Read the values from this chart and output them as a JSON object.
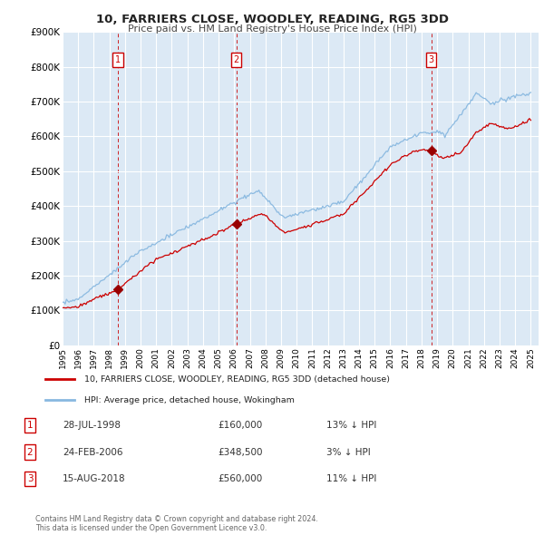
{
  "title": "10, FARRIERS CLOSE, WOODLEY, READING, RG5 3DD",
  "subtitle": "Price paid vs. HM Land Registry's House Price Index (HPI)",
  "background_color": "#ffffff",
  "plot_bg_color": "#dce9f5",
  "grid_color": "#ffffff",
  "ylim": [
    0,
    900000
  ],
  "yticks": [
    0,
    100000,
    200000,
    300000,
    400000,
    500000,
    600000,
    700000,
    800000,
    900000
  ],
  "ytick_labels": [
    "£0",
    "£100K",
    "£200K",
    "£300K",
    "£400K",
    "£500K",
    "£600K",
    "£700K",
    "£800K",
    "£900K"
  ],
  "xlim_start": 1995.0,
  "xlim_end": 2025.5,
  "xtick_years": [
    1995,
    1996,
    1997,
    1998,
    1999,
    2000,
    2001,
    2002,
    2003,
    2004,
    2005,
    2006,
    2007,
    2008,
    2009,
    2010,
    2011,
    2012,
    2013,
    2014,
    2015,
    2016,
    2017,
    2018,
    2019,
    2020,
    2021,
    2022,
    2023,
    2024,
    2025
  ],
  "sale_points": [
    {
      "year": 1998.55,
      "price": 160000,
      "label": "1"
    },
    {
      "year": 2006.13,
      "price": 348500,
      "label": "2"
    },
    {
      "year": 2018.62,
      "price": 560000,
      "label": "3"
    }
  ],
  "vline_color": "#cc0000",
  "sale_dot_color": "#990000",
  "price_line_color": "#cc0000",
  "hpi_line_color": "#88b8e0",
  "legend_price_label": "10, FARRIERS CLOSE, WOODLEY, READING, RG5 3DD (detached house)",
  "legend_hpi_label": "HPI: Average price, detached house, Wokingham",
  "footer_text": "Contains HM Land Registry data © Crown copyright and database right 2024.\nThis data is licensed under the Open Government Licence v3.0.",
  "label_box_color": "#cc0000",
  "table_rows": [
    [
      "1",
      "28-JUL-1998",
      "£160,000",
      "13% ↓ HPI"
    ],
    [
      "2",
      "24-FEB-2006",
      "£348,500",
      "3% ↓ HPI"
    ],
    [
      "3",
      "15-AUG-2018",
      "£560,000",
      "11% ↓ HPI"
    ]
  ]
}
